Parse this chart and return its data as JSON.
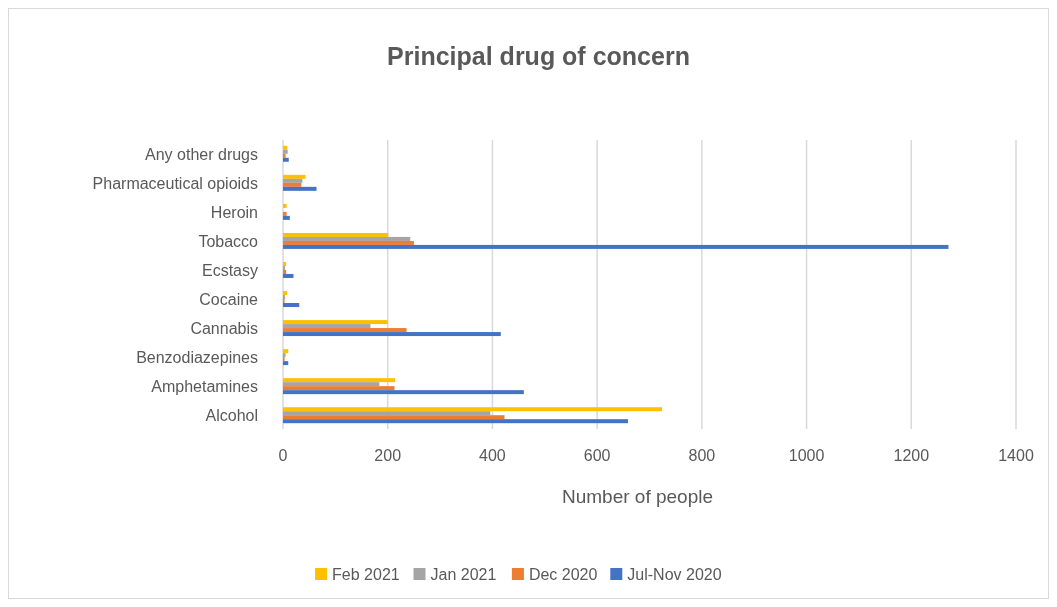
{
  "chart_data": {
    "type": "bar",
    "orientation": "horizontal",
    "title": "Principal drug of concern",
    "xlabel": "Number of people",
    "categories": [
      "Any other drugs",
      "Pharmaceutical opioids",
      "Heroin",
      "Tobacco",
      "Ecstasy",
      "Cocaine",
      "Cannabis",
      "Benzodiazepines",
      "Amphetamines",
      "Alcohol"
    ],
    "series": [
      {
        "name": "Feb 2021",
        "color": "#ffc000",
        "values": [
          8,
          43,
          7,
          201,
          6,
          8,
          200,
          10,
          214,
          724
        ]
      },
      {
        "name": "Jan 2021",
        "color": "#a5a5a5",
        "values": [
          9,
          37,
          null,
          243,
          4,
          4,
          167,
          5,
          184,
          396
        ]
      },
      {
        "name": "Dec 2020",
        "color": "#ed7d31",
        "values": [
          5,
          35,
          7,
          250,
          6,
          3,
          236,
          3,
          213,
          423
        ]
      },
      {
        "name": "Jul-Nov 2020",
        "color": "#4472c4",
        "values": [
          11,
          64,
          13,
          1271,
          20,
          31,
          416,
          10,
          460,
          659
        ]
      }
    ],
    "xlim": [
      0,
      1400
    ],
    "xticks": [
      0,
      200,
      400,
      600,
      800,
      1000,
      1200,
      1400
    ],
    "grid": "x",
    "legend": "bottom"
  }
}
